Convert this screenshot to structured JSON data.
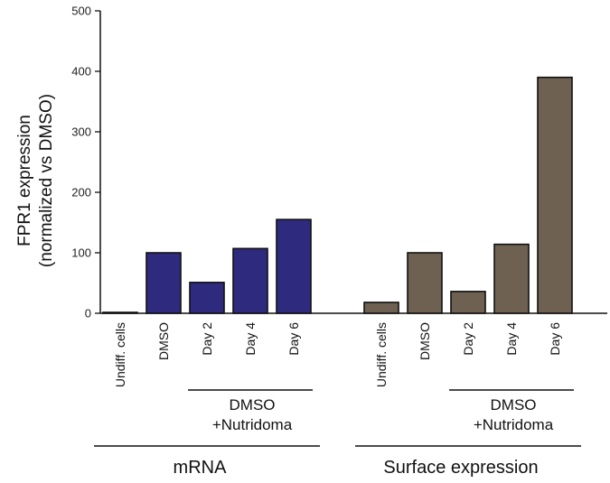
{
  "chart_data": {
    "type": "bar",
    "ylabel_lines": [
      "FPR1 expression",
      "(normalized vs DMSO)"
    ],
    "ylim": [
      0,
      500
    ],
    "yticks": [
      "0",
      "100",
      "200",
      "300",
      "400",
      "500"
    ],
    "grid": false,
    "groups": [
      {
        "label": "mRNA",
        "color": "#2e2b7e",
        "categories": [
          "Undiff. cells",
          "DMSO",
          "Day 2",
          "Day 4",
          "Day 6"
        ],
        "values": [
          1,
          100,
          51,
          107,
          155
        ],
        "treatment_lines": [
          "DMSO",
          "+Nutridoma"
        ]
      },
      {
        "label": "Surface expression",
        "color": "#6e6151",
        "categories": [
          "Undiff. cells",
          "DMSO",
          "Day 2",
          "Day 4",
          "Day 6"
        ],
        "values": [
          18,
          100,
          36,
          114,
          390
        ],
        "treatment_lines": [
          "DMSO",
          "+Nutridoma"
        ]
      }
    ]
  }
}
